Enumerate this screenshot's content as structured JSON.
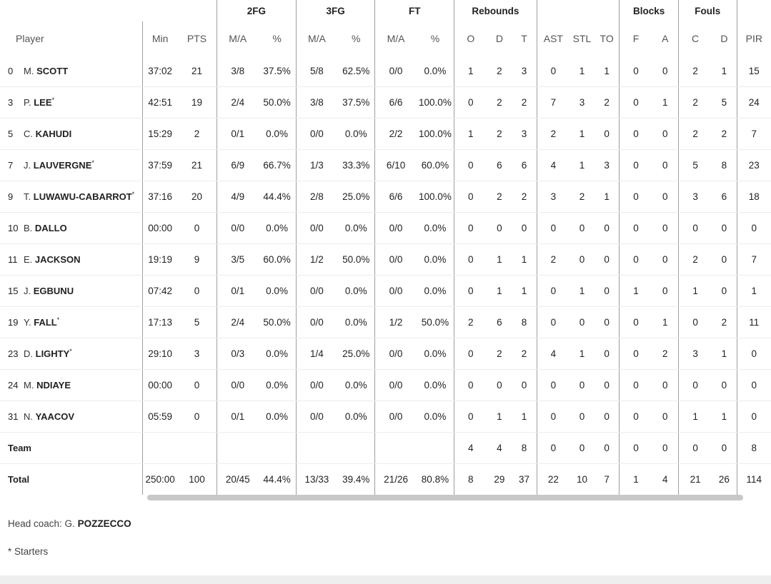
{
  "groups": {
    "fg2": "2FG",
    "fg3": "3FG",
    "ft": "FT",
    "reb": "Rebounds",
    "blk": "Blocks",
    "fouls": "Fouls"
  },
  "headers": {
    "player": "Player",
    "min": "Min",
    "pts": "PTS",
    "fg2_ma": "M/A",
    "fg2_pct": "%",
    "fg3_ma": "M/A",
    "fg3_pct": "%",
    "ft_ma": "M/A",
    "ft_pct": "%",
    "reb_o": "O",
    "reb_d": "D",
    "reb_t": "T",
    "ast": "AST",
    "stl": "STL",
    "to": "TO",
    "blk_f": "F",
    "blk_a": "A",
    "foul_c": "C",
    "foul_d": "D",
    "pir": "PIR"
  },
  "players": [
    {
      "num": "0",
      "initial": "M.",
      "surname": "SCOTT",
      "starter": "",
      "min": "37:02",
      "pts": "21",
      "fg2_ma": "3/8",
      "fg2_pct": "37.5%",
      "fg3_ma": "5/8",
      "fg3_pct": "62.5%",
      "ft_ma": "0/0",
      "ft_pct": "0.0%",
      "reb_o": "1",
      "reb_d": "2",
      "reb_t": "3",
      "ast": "0",
      "stl": "1",
      "to": "1",
      "blk_f": "0",
      "blk_a": "0",
      "foul_c": "2",
      "foul_d": "1",
      "pir": "15"
    },
    {
      "num": "3",
      "initial": "P.",
      "surname": "LEE",
      "starter": "*",
      "min": "42:51",
      "pts": "19",
      "fg2_ma": "2/4",
      "fg2_pct": "50.0%",
      "fg3_ma": "3/8",
      "fg3_pct": "37.5%",
      "ft_ma": "6/6",
      "ft_pct": "100.0%",
      "reb_o": "0",
      "reb_d": "2",
      "reb_t": "2",
      "ast": "7",
      "stl": "3",
      "to": "2",
      "blk_f": "0",
      "blk_a": "1",
      "foul_c": "2",
      "foul_d": "5",
      "pir": "24"
    },
    {
      "num": "5",
      "initial": "C.",
      "surname": "KAHUDI",
      "starter": "",
      "min": "15:29",
      "pts": "2",
      "fg2_ma": "0/1",
      "fg2_pct": "0.0%",
      "fg3_ma": "0/0",
      "fg3_pct": "0.0%",
      "ft_ma": "2/2",
      "ft_pct": "100.0%",
      "reb_o": "1",
      "reb_d": "2",
      "reb_t": "3",
      "ast": "2",
      "stl": "1",
      "to": "0",
      "blk_f": "0",
      "blk_a": "0",
      "foul_c": "2",
      "foul_d": "2",
      "pir": "7"
    },
    {
      "num": "7",
      "initial": "J.",
      "surname": "LAUVERGNE",
      "starter": "*",
      "min": "37:59",
      "pts": "21",
      "fg2_ma": "6/9",
      "fg2_pct": "66.7%",
      "fg3_ma": "1/3",
      "fg3_pct": "33.3%",
      "ft_ma": "6/10",
      "ft_pct": "60.0%",
      "reb_o": "0",
      "reb_d": "6",
      "reb_t": "6",
      "ast": "4",
      "stl": "1",
      "to": "3",
      "blk_f": "0",
      "blk_a": "0",
      "foul_c": "5",
      "foul_d": "8",
      "pir": "23"
    },
    {
      "num": "9",
      "initial": "T.",
      "surname": "LUWAWU-CABARROT",
      "starter": "*",
      "min": "37:16",
      "pts": "20",
      "fg2_ma": "4/9",
      "fg2_pct": "44.4%",
      "fg3_ma": "2/8",
      "fg3_pct": "25.0%",
      "ft_ma": "6/6",
      "ft_pct": "100.0%",
      "reb_o": "0",
      "reb_d": "2",
      "reb_t": "2",
      "ast": "3",
      "stl": "2",
      "to": "1",
      "blk_f": "0",
      "blk_a": "0",
      "foul_c": "3",
      "foul_d": "6",
      "pir": "18"
    },
    {
      "num": "10",
      "initial": "B.",
      "surname": "DALLO",
      "starter": "",
      "min": "00:00",
      "pts": "0",
      "fg2_ma": "0/0",
      "fg2_pct": "0.0%",
      "fg3_ma": "0/0",
      "fg3_pct": "0.0%",
      "ft_ma": "0/0",
      "ft_pct": "0.0%",
      "reb_o": "0",
      "reb_d": "0",
      "reb_t": "0",
      "ast": "0",
      "stl": "0",
      "to": "0",
      "blk_f": "0",
      "blk_a": "0",
      "foul_c": "0",
      "foul_d": "0",
      "pir": "0"
    },
    {
      "num": "11",
      "initial": "E.",
      "surname": "JACKSON",
      "starter": "",
      "min": "19:19",
      "pts": "9",
      "fg2_ma": "3/5",
      "fg2_pct": "60.0%",
      "fg3_ma": "1/2",
      "fg3_pct": "50.0%",
      "ft_ma": "0/0",
      "ft_pct": "0.0%",
      "reb_o": "0",
      "reb_d": "1",
      "reb_t": "1",
      "ast": "2",
      "stl": "0",
      "to": "0",
      "blk_f": "0",
      "blk_a": "0",
      "foul_c": "2",
      "foul_d": "0",
      "pir": "7"
    },
    {
      "num": "15",
      "initial": "J.",
      "surname": "EGBUNU",
      "starter": "",
      "min": "07:42",
      "pts": "0",
      "fg2_ma": "0/1",
      "fg2_pct": "0.0%",
      "fg3_ma": "0/0",
      "fg3_pct": "0.0%",
      "ft_ma": "0/0",
      "ft_pct": "0.0%",
      "reb_o": "0",
      "reb_d": "1",
      "reb_t": "1",
      "ast": "0",
      "stl": "1",
      "to": "0",
      "blk_f": "1",
      "blk_a": "0",
      "foul_c": "1",
      "foul_d": "0",
      "pir": "1"
    },
    {
      "num": "19",
      "initial": "Y.",
      "surname": "FALL",
      "starter": "*",
      "min": "17:13",
      "pts": "5",
      "fg2_ma": "2/4",
      "fg2_pct": "50.0%",
      "fg3_ma": "0/0",
      "fg3_pct": "0.0%",
      "ft_ma": "1/2",
      "ft_pct": "50.0%",
      "reb_o": "2",
      "reb_d": "6",
      "reb_t": "8",
      "ast": "0",
      "stl": "0",
      "to": "0",
      "blk_f": "0",
      "blk_a": "1",
      "foul_c": "0",
      "foul_d": "2",
      "pir": "11"
    },
    {
      "num": "23",
      "initial": "D.",
      "surname": "LIGHTY",
      "starter": "*",
      "min": "29:10",
      "pts": "3",
      "fg2_ma": "0/3",
      "fg2_pct": "0.0%",
      "fg3_ma": "1/4",
      "fg3_pct": "25.0%",
      "ft_ma": "0/0",
      "ft_pct": "0.0%",
      "reb_o": "0",
      "reb_d": "2",
      "reb_t": "2",
      "ast": "4",
      "stl": "1",
      "to": "0",
      "blk_f": "0",
      "blk_a": "2",
      "foul_c": "3",
      "foul_d": "1",
      "pir": "0"
    },
    {
      "num": "24",
      "initial": "M.",
      "surname": "NDIAYE",
      "starter": "",
      "min": "00:00",
      "pts": "0",
      "fg2_ma": "0/0",
      "fg2_pct": "0.0%",
      "fg3_ma": "0/0",
      "fg3_pct": "0.0%",
      "ft_ma": "0/0",
      "ft_pct": "0.0%",
      "reb_o": "0",
      "reb_d": "0",
      "reb_t": "0",
      "ast": "0",
      "stl": "0",
      "to": "0",
      "blk_f": "0",
      "blk_a": "0",
      "foul_c": "0",
      "foul_d": "0",
      "pir": "0"
    },
    {
      "num": "31",
      "initial": "N.",
      "surname": "YAACOV",
      "starter": "",
      "min": "05:59",
      "pts": "0",
      "fg2_ma": "0/1",
      "fg2_pct": "0.0%",
      "fg3_ma": "0/0",
      "fg3_pct": "0.0%",
      "ft_ma": "0/0",
      "ft_pct": "0.0%",
      "reb_o": "0",
      "reb_d": "1",
      "reb_t": "1",
      "ast": "0",
      "stl": "0",
      "to": "0",
      "blk_f": "0",
      "blk_a": "0",
      "foul_c": "1",
      "foul_d": "1",
      "pir": "0"
    }
  ],
  "team": {
    "label": "Team",
    "min": "",
    "pts": "",
    "fg2_ma": "",
    "fg2_pct": "",
    "fg3_ma": "",
    "fg3_pct": "",
    "ft_ma": "",
    "ft_pct": "",
    "reb_o": "4",
    "reb_d": "4",
    "reb_t": "8",
    "ast": "0",
    "stl": "0",
    "to": "0",
    "blk_f": "0",
    "blk_a": "0",
    "foul_c": "0",
    "foul_d": "0",
    "pir": "8"
  },
  "total": {
    "label": "Total",
    "min": "250:00",
    "pts": "100",
    "fg2_ma": "20/45",
    "fg2_pct": "44.4%",
    "fg3_ma": "13/33",
    "fg3_pct": "39.4%",
    "ft_ma": "21/26",
    "ft_pct": "80.8%",
    "reb_o": "8",
    "reb_d": "29",
    "reb_t": "37",
    "ast": "22",
    "stl": "10",
    "to": "7",
    "blk_f": "1",
    "blk_a": "4",
    "foul_c": "21",
    "foul_d": "26",
    "pir": "114"
  },
  "coach": {
    "prefix": "Head coach: G.",
    "surname": "POZZECCO"
  },
  "legend": "* Starters"
}
